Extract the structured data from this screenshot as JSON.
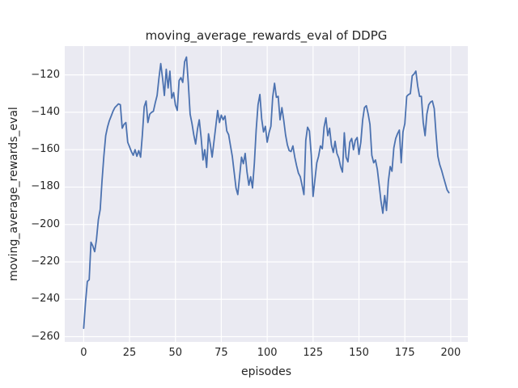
{
  "figure": {
    "title": "moving_average_rewards_eval of DDPG",
    "xlabel": "episodes",
    "ylabel": "moving_average_rewards_eval"
  },
  "chart_data": {
    "type": "line",
    "title": "moving_average_rewards_eval of DDPG",
    "xlabel": "episodes",
    "ylabel": "moving_average_rewards_eval",
    "grid": true,
    "legend": null,
    "xticks": [
      0,
      25,
      50,
      75,
      100,
      125,
      150,
      175,
      200
    ],
    "yticks": [
      -120,
      -140,
      -160,
      -180,
      -200,
      -220,
      -240,
      -260
    ],
    "xlim": [
      -10.3,
      209.3
    ],
    "ylim": [
      -262.8,
      -104.6
    ],
    "style": {
      "figure_bg": "#ffffff",
      "axes_bg": "#eaeaf2",
      "grid_color": "#ffffff",
      "line_color": "#4c72b0",
      "text_color": "#262626"
    },
    "series": [
      {
        "name": "moving_average_rewards_eval",
        "color": "#4c72b0",
        "x_start": 0,
        "x_step": 1,
        "values": [
          -255.5,
          -242,
          -230.5,
          -229.5,
          -209.5,
          -211.5,
          -214.5,
          -208,
          -197.5,
          -192,
          -177,
          -163.5,
          -152.5,
          -148,
          -144.5,
          -142,
          -139.5,
          -137.5,
          -136.5,
          -135.5,
          -136,
          -148.5,
          -146.5,
          -145.5,
          -156,
          -158.5,
          -161,
          -163,
          -160,
          -163.5,
          -160.5,
          -164,
          -152,
          -137,
          -134,
          -145.5,
          -141,
          -140,
          -139.5,
          -135,
          -131,
          -122,
          -114,
          -122,
          -131,
          -117,
          -127,
          -118,
          -132.5,
          -129.5,
          -136,
          -139,
          -123,
          -121.5,
          -124,
          -113,
          -110.5,
          -124,
          -141,
          -146,
          -152,
          -157,
          -149,
          -144,
          -153.5,
          -165.5,
          -160,
          -169.5,
          -151.5,
          -157,
          -164,
          -155.5,
          -147.5,
          -139,
          -145.5,
          -141.5,
          -144,
          -142,
          -150,
          -152,
          -158,
          -163.5,
          -172,
          -180.5,
          -184,
          -174,
          -164,
          -167.5,
          -162,
          -172,
          -179,
          -174.5,
          -180.5,
          -167,
          -149.5,
          -136,
          -130.5,
          -143.5,
          -150.5,
          -147.5,
          -156,
          -151,
          -147.5,
          -132,
          -124.5,
          -132,
          -131.5,
          -144,
          -137.5,
          -144,
          -152,
          -157.5,
          -160.5,
          -161,
          -158,
          -164,
          -168.5,
          -172.5,
          -174.5,
          -179,
          -184,
          -155,
          -148,
          -150,
          -163,
          -185,
          -176,
          -167,
          -163.5,
          -158,
          -159.5,
          -148,
          -143,
          -152.5,
          -148.5,
          -157.5,
          -161.5,
          -155.5,
          -162,
          -164.5,
          -169,
          -172,
          -151,
          -164,
          -166.5,
          -156,
          -154,
          -160,
          -155,
          -153.5,
          -162.5,
          -156,
          -144,
          -137.5,
          -136.5,
          -141,
          -146.5,
          -163,
          -167,
          -165.5,
          -170.5,
          -179,
          -187.5,
          -194,
          -184.5,
          -192.5,
          -177,
          -169,
          -171.5,
          -159,
          -154,
          -151.5,
          -149.5,
          -167,
          -150.5,
          -146,
          -131.5,
          -130.5,
          -130,
          -120.5,
          -119.5,
          -118,
          -126,
          -131.5,
          -131.5,
          -145.5,
          -152.5,
          -141,
          -136,
          -134.5,
          -134,
          -138,
          -152,
          -163.5,
          -168,
          -171,
          -174.5,
          -178,
          -181.5,
          -183
        ]
      }
    ]
  }
}
